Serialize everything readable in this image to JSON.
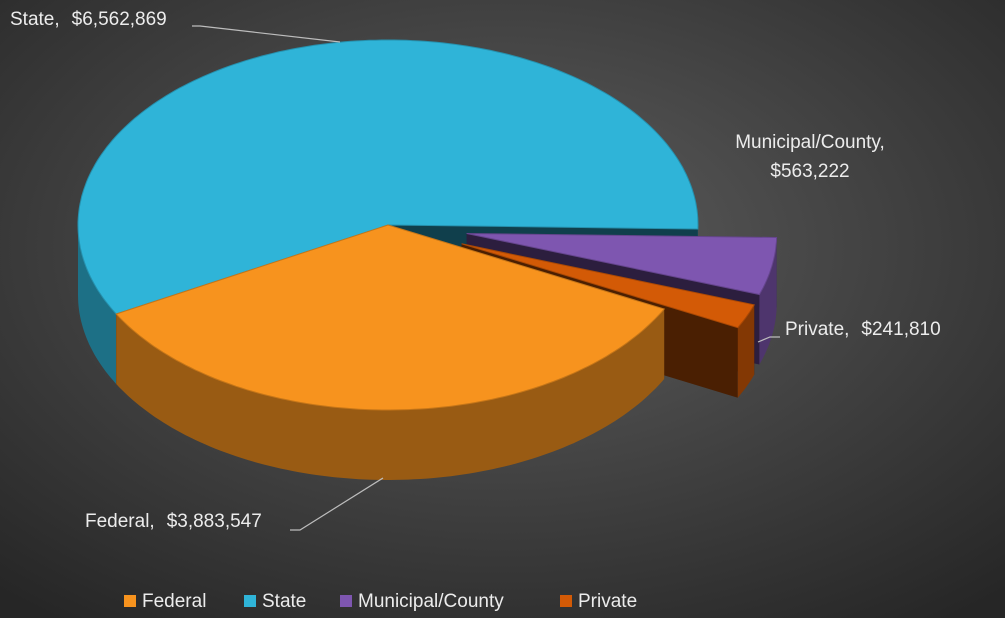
{
  "chart_data": {
    "type": "pie3d",
    "categories": [
      "Federal",
      "State",
      "Municipal/County",
      "Private"
    ],
    "values": [
      3883547,
      6562869,
      563222,
      241810
    ],
    "value_labels": [
      "$3,883,547",
      "$6,562,869",
      "$563,222",
      "$241,810"
    ],
    "label_separator": ",",
    "colors": [
      "#f7931e",
      "#2fb4d8",
      "#7e56b0",
      "#d35a06"
    ],
    "legend": "bottom"
  }
}
